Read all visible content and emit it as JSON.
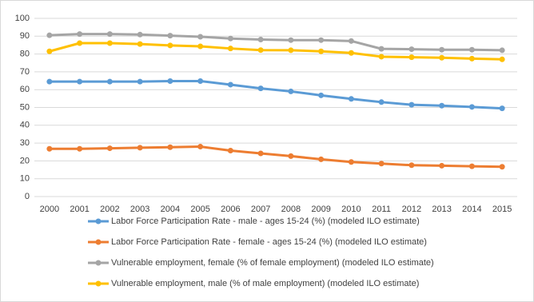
{
  "chart_data": {
    "type": "line",
    "categories": [
      "2000",
      "2001",
      "2002",
      "2003",
      "2004",
      "2005",
      "2006",
      "2007",
      "2008",
      "2009",
      "2010",
      "2011",
      "2012",
      "2013",
      "2014",
      "2015"
    ],
    "series": [
      {
        "name": "Labor Force Participation Rate - male - ages 15-24 (%) (modeled ILO estimate)",
        "color": "#5b9bd5",
        "values": [
          64.5,
          64.5,
          64.5,
          64.5,
          64.8,
          64.8,
          62.8,
          60.7,
          59,
          56.8,
          54.8,
          53,
          51.5,
          51,
          50.3,
          49.5
        ]
      },
      {
        "name": "Labor Force Participation Rate - female - ages 15-24 (%) (modeled ILO estimate)",
        "color": "#ed7d31",
        "values": [
          26.8,
          26.8,
          27.1,
          27.4,
          27.7,
          28,
          25.8,
          24.2,
          22.7,
          20.9,
          19.4,
          18.5,
          17.6,
          17.3,
          17,
          16.7
        ]
      },
      {
        "name": "Vulnerable employment, female (% of female employment) (modeled ILO estimate)",
        "color": "#a5a5a5",
        "values": [
          90.5,
          91.2,
          91.2,
          90.9,
          90.3,
          89.7,
          88.7,
          88.1,
          87.8,
          87.8,
          87.3,
          82.9,
          82.7,
          82.4,
          82.4,
          82.1
        ]
      },
      {
        "name": "Vulnerable employment, male (% of male employment) (modeled ILO estimate)",
        "color": "#ffc000",
        "values": [
          81.5,
          86.1,
          86.1,
          85.6,
          84.8,
          84.3,
          83.1,
          82.2,
          82.1,
          81.5,
          80.6,
          78.5,
          78.2,
          77.9,
          77.4,
          77
        ]
      }
    ],
    "ylim": [
      0,
      100
    ],
    "yticks": [
      0,
      10,
      20,
      30,
      40,
      50,
      60,
      70,
      80,
      90,
      100
    ],
    "grid": true,
    "legend": "bottom"
  }
}
